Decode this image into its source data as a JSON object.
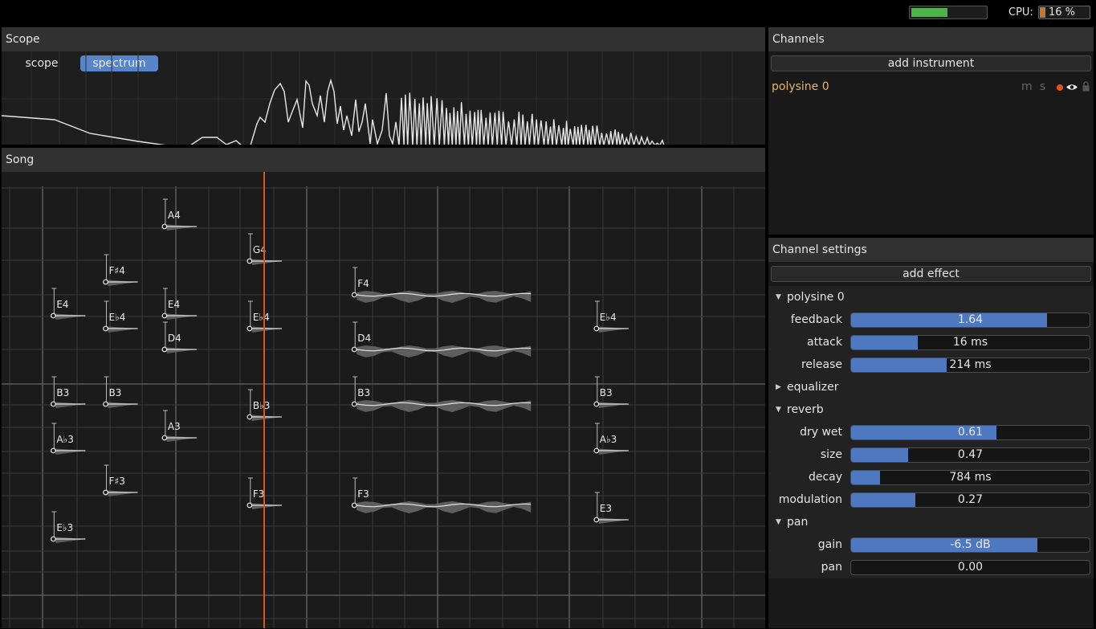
{
  "topbar": {
    "cpu_label": "CPU:",
    "cpu_value": "16 %",
    "cpu_fraction": 0.16,
    "level_fraction": 0.48
  },
  "scope": {
    "title": "Scope",
    "tabs": [
      {
        "label": "scope",
        "active": false
      },
      {
        "label": "spectrum",
        "active": true
      }
    ]
  },
  "song": {
    "title": "Song"
  },
  "channels": {
    "title": "Channels",
    "add_instrument": "add instrument",
    "list": [
      {
        "name": "polysine 0",
        "mute": "m",
        "solo": "s"
      }
    ]
  },
  "settings": {
    "title": "Channel settings",
    "add_effect": "add effect",
    "sections": [
      {
        "name": "polysine 0",
        "expanded": true,
        "params": [
          {
            "label": "feedback",
            "value": "1.64",
            "fraction": 0.82
          },
          {
            "label": "attack",
            "value": "16 ms",
            "fraction": 0.28
          },
          {
            "label": "release",
            "value": "214 ms",
            "fraction": 0.4
          }
        ]
      },
      {
        "name": "equalizer",
        "expanded": false,
        "params": []
      },
      {
        "name": "reverb",
        "expanded": true,
        "params": [
          {
            "label": "dry wet",
            "value": "0.61",
            "fraction": 0.61
          },
          {
            "label": "size",
            "value": "0.47",
            "fraction": 0.24
          },
          {
            "label": "decay",
            "value": "784 ms",
            "fraction": 0.12
          },
          {
            "label": "modulation",
            "value": "0.27",
            "fraction": 0.27
          }
        ]
      },
      {
        "name": "pan",
        "expanded": true,
        "params": [
          {
            "label": "gain",
            "value": "-6.5 dB",
            "fraction": 0.78
          },
          {
            "label": "pan",
            "value": "0.00",
            "fraction": 0.0
          }
        ]
      }
    ]
  },
  "notes": [
    {
      "label": "A4",
      "time": 2.6,
      "pitch": "A4",
      "len": 1
    },
    {
      "label": "G4",
      "time": 3.9,
      "pitch": "G4",
      "len": 1
    },
    {
      "label": "F♯4",
      "time": 1.7,
      "pitch": "F#4",
      "len": 1
    },
    {
      "label": "E4",
      "time": 0.9,
      "pitch": "E4",
      "len": 1
    },
    {
      "label": "E4",
      "time": 2.6,
      "pitch": "E4",
      "len": 1
    },
    {
      "label": "E♭4",
      "time": 1.7,
      "pitch": "Eb4",
      "len": 1
    },
    {
      "label": "E♭4",
      "time": 3.9,
      "pitch": "Eb4",
      "len": 1
    },
    {
      "label": "D4",
      "time": 2.6,
      "pitch": "D4",
      "len": 1
    },
    {
      "label": "F4",
      "time": 5.5,
      "pitch": "F4",
      "len": 5
    },
    {
      "label": "D4",
      "time": 5.5,
      "pitch": "D4",
      "len": 5
    },
    {
      "label": "E♭4",
      "time": 9.2,
      "pitch": "Eb4",
      "len": 1
    },
    {
      "label": "B3",
      "time": 0.9,
      "pitch": "B3",
      "len": 1
    },
    {
      "label": "B3",
      "time": 1.7,
      "pitch": "B3",
      "len": 1
    },
    {
      "label": "B♭3",
      "time": 3.9,
      "pitch": "Bb3",
      "len": 1
    },
    {
      "label": "B3",
      "time": 5.5,
      "pitch": "B3",
      "len": 5
    },
    {
      "label": "B3",
      "time": 9.2,
      "pitch": "B3",
      "len": 1
    },
    {
      "label": "A♭3",
      "time": 0.9,
      "pitch": "Ab3",
      "len": 1
    },
    {
      "label": "A3",
      "time": 2.6,
      "pitch": "A3",
      "len": 1
    },
    {
      "label": "A♭3",
      "time": 9.2,
      "pitch": "Ab3",
      "len": 1
    },
    {
      "label": "F♯3",
      "time": 1.7,
      "pitch": "F#3",
      "len": 1
    },
    {
      "label": "F3",
      "time": 3.9,
      "pitch": "F3",
      "len": 1
    },
    {
      "label": "F3",
      "time": 5.5,
      "pitch": "F3",
      "len": 5
    },
    {
      "label": "E♭3",
      "time": 0.9,
      "pitch": "Eb3",
      "len": 1
    },
    {
      "label": "E3",
      "time": 9.2,
      "pitch": "E3",
      "len": 1
    }
  ],
  "colors": {
    "accent": "#5884c9",
    "playhead": "#d9541e",
    "channel_name": "#e3b469",
    "meter": "#4fb34a",
    "cpu": "#c47a2b",
    "record": "#e0531d"
  }
}
